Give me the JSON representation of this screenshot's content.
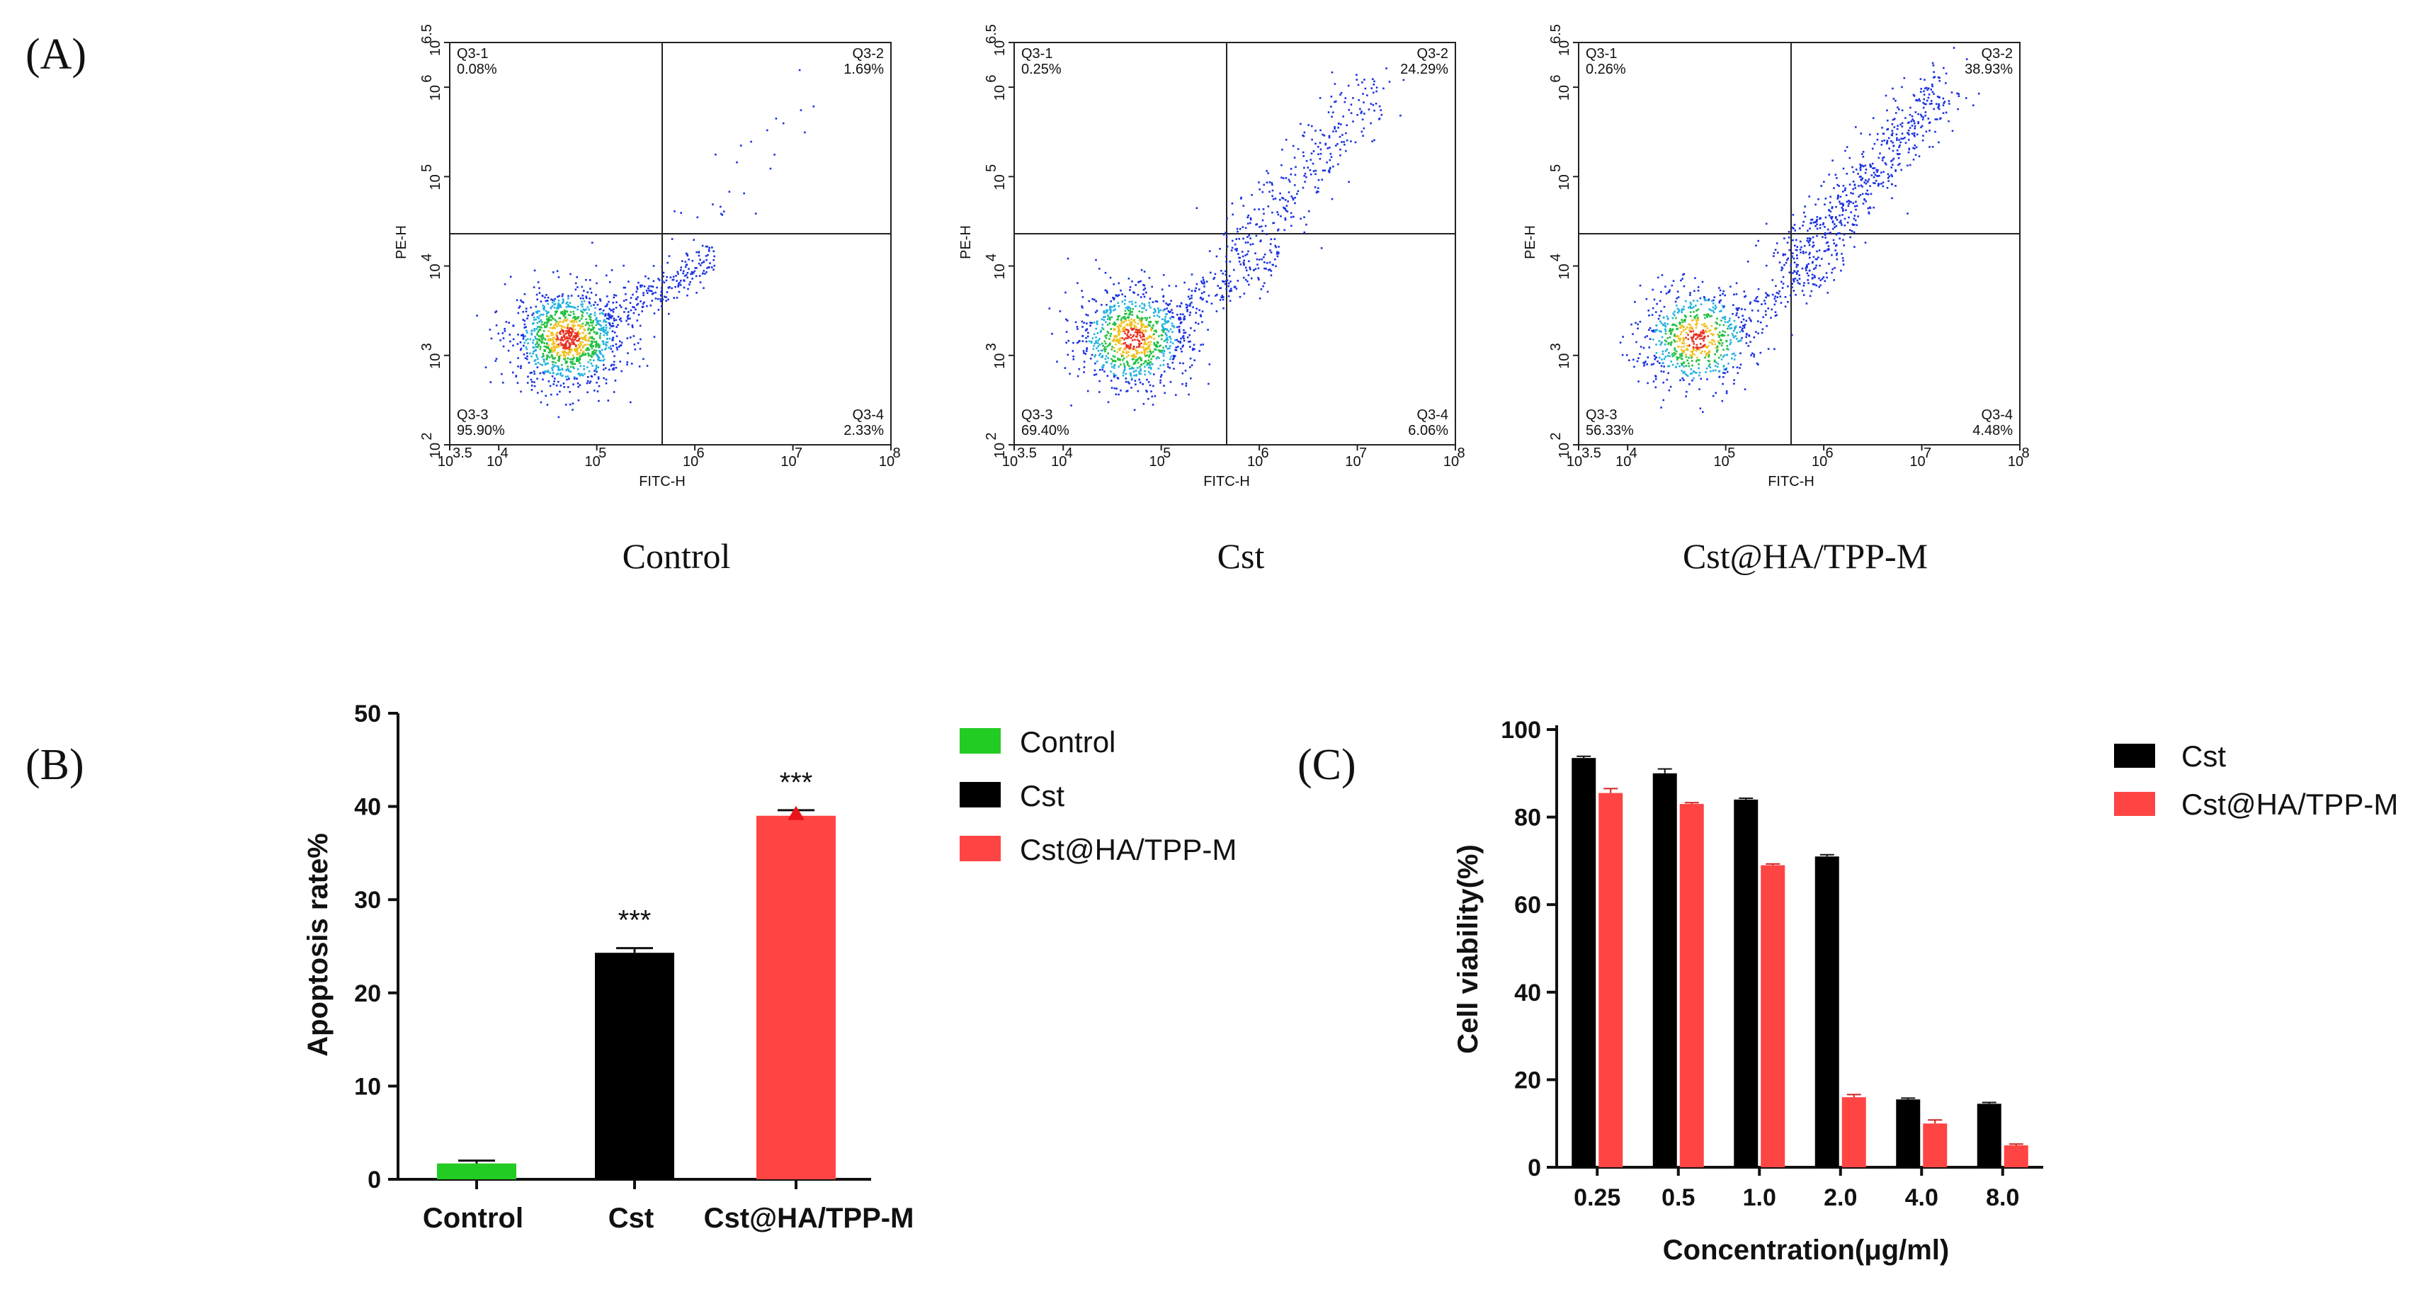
{
  "panel_labels": [
    "(A)",
    "(B)",
    "(C)"
  ],
  "chart_data": [
    {
      "type": "scatter",
      "panel": "(A)",
      "xlabel": "FITC-H",
      "ylabel": "PE-H",
      "x_ticks": [
        "10",
        "10",
        "10",
        "10",
        "10",
        "10"
      ],
      "x_tick_exps": [
        "3.5",
        "4",
        "5",
        "6",
        "7",
        "8"
      ],
      "y_ticks": [
        "10",
        "10",
        "10",
        "10",
        "10",
        "10"
      ],
      "y_tick_exps": [
        "2",
        "3",
        "4",
        "5",
        "6",
        "6.5"
      ],
      "plots": [
        {
          "title": "Control",
          "quadrants": {
            "q1": {
              "name": "Q3-1",
              "value": "0.08%"
            },
            "q2": {
              "name": "Q3-2",
              "value": "1.69%"
            },
            "q3": {
              "name": "Q3-3",
              "value": "95.90%"
            },
            "q4": {
              "name": "Q3-4",
              "value": "2.33%"
            }
          }
        },
        {
          "title": "Cst",
          "quadrants": {
            "q1": {
              "name": "Q3-1",
              "value": "0.25%"
            },
            "q2": {
              "name": "Q3-2",
              "value": "24.29%"
            },
            "q3": {
              "name": "Q3-3",
              "value": "69.40%"
            },
            "q4": {
              "name": "Q3-4",
              "value": "6.06%"
            }
          }
        },
        {
          "title": "Cst@HA/TPP-M",
          "quadrants": {
            "q1": {
              "name": "Q3-1",
              "value": "0.26%"
            },
            "q2": {
              "name": "Q3-2",
              "value": "38.93%"
            },
            "q3": {
              "name": "Q3-3",
              "value": "56.33%"
            },
            "q4": {
              "name": "Q3-4",
              "value": "4.48%"
            }
          }
        }
      ]
    },
    {
      "type": "bar",
      "panel": "(B)",
      "categories": [
        "Control",
        "Cst",
        "Cst@HA/TPP-M"
      ],
      "values": [
        1.7,
        24.3,
        39.0
      ],
      "errors": [
        0.3,
        0.5,
        0.6
      ],
      "colors": [
        "#22cc22",
        "#000000",
        "#ff4444"
      ],
      "significance": [
        "",
        "***",
        "***"
      ],
      "ylabel": "Apoptosis rate%",
      "ylim": [
        0,
        50
      ],
      "yticks": [
        0,
        10,
        20,
        30,
        40,
        50
      ],
      "legend": [
        "Control",
        "Cst",
        "Cst@HA/TPP-M"
      ]
    },
    {
      "type": "bar",
      "panel": "(C)",
      "categories": [
        "0.25",
        "0.5",
        "1.0",
        "2.0",
        "4.0",
        "8.0"
      ],
      "series": [
        {
          "name": "Cst",
          "color": "#000000",
          "values": [
            93.5,
            90.0,
            84.0,
            71.0,
            15.5,
            14.5
          ],
          "errors": [
            0.4,
            1.0,
            0.3,
            0.4,
            0.3,
            0.3
          ]
        },
        {
          "name": "Cst@HA/TPP-M",
          "color": "#ff4444",
          "values": [
            85.5,
            83.0,
            69.0,
            16.0,
            10.0,
            5.0
          ],
          "errors": [
            1.0,
            0.3,
            0.3,
            0.6,
            0.8,
            0.3
          ]
        }
      ],
      "xlabel": "Concentration(μg/ml)",
      "ylabel": "Cell viability(%)",
      "ylim": [
        0,
        100
      ],
      "yticks": [
        0,
        20,
        40,
        60,
        80,
        100
      ]
    }
  ]
}
